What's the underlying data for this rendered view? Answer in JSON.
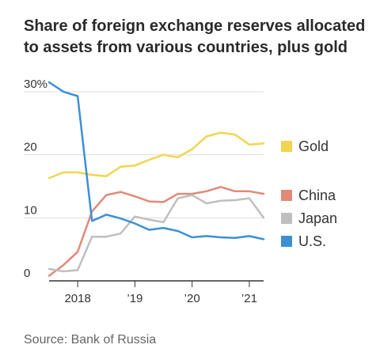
{
  "title_lines": [
    "Share of foreign exchange reserves allocated",
    "to assets from various countries, plus gold"
  ],
  "source": "Source: Bank of Russia",
  "colors": {
    "Gold": "#f2d54e",
    "China": "#e08a77",
    "Japan": "#bfbfbf",
    "U.S.": "#3d8fd3",
    "axis": "#333333",
    "grid": "#dddddd",
    "text": "#333333"
  },
  "chart_data": {
    "type": "line",
    "title": "Share of foreign exchange reserves allocated to assets from various countries, plus gold",
    "ylim": [
      0,
      32
    ],
    "yticks": [
      0,
      10,
      20,
      30
    ],
    "ytick_labels": [
      "0",
      "10",
      "20",
      "30%"
    ],
    "xlim": [
      2017.5,
      2021.25
    ],
    "xticks": [
      2018,
      2019,
      2020,
      2021
    ],
    "xtick_labels": [
      "2018",
      "’19",
      "’20",
      "’21"
    ],
    "x": [
      2017.5,
      2017.75,
      2018.0,
      2018.25,
      2018.5,
      2018.75,
      2019.0,
      2019.25,
      2019.5,
      2019.75,
      2020.0,
      2020.25,
      2020.5,
      2020.75,
      2021.0,
      2021.25
    ],
    "grid": true,
    "legend_position": "right",
    "series": [
      {
        "name": "Gold",
        "values": [
          16.3,
          17.2,
          17.2,
          16.8,
          16.6,
          18.1,
          18.3,
          19.2,
          20.0,
          19.6,
          20.9,
          22.9,
          23.5,
          23.2,
          21.6,
          21.8
        ]
      },
      {
        "name": "China",
        "values": [
          0.8,
          2.5,
          4.6,
          11.0,
          13.6,
          14.1,
          13.4,
          12.6,
          12.5,
          13.8,
          13.8,
          14.2,
          14.9,
          14.2,
          14.2,
          13.8
        ]
      },
      {
        "name": "Japan",
        "values": [
          1.9,
          1.5,
          1.7,
          7.0,
          7.0,
          7.5,
          10.2,
          9.7,
          9.3,
          13.1,
          13.6,
          12.3,
          12.7,
          12.8,
          13.1,
          10.0
        ]
      },
      {
        "name": "U.S.",
        "values": [
          31.5,
          30.0,
          29.3,
          9.5,
          10.5,
          9.9,
          9.1,
          8.1,
          8.4,
          7.9,
          6.9,
          7.1,
          6.9,
          6.8,
          7.1,
          6.6
        ]
      }
    ],
    "legend_order": [
      "Gold",
      "China",
      "Japan",
      "U.S."
    ]
  }
}
